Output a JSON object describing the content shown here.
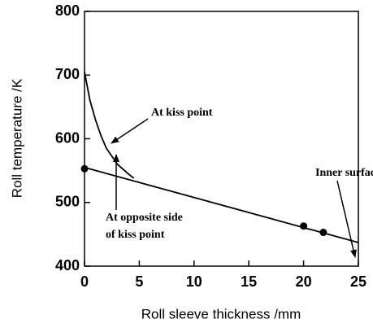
{
  "chart_data": {
    "type": "line",
    "xlabel": "Roll sleeve thickness /mm",
    "ylabel": "Roll temperature /K",
    "xlim": [
      0,
      25
    ],
    "xticks": [
      0,
      5,
      10,
      15,
      20,
      25
    ],
    "ylim": [
      400,
      800
    ],
    "yticks": [
      400,
      500,
      600,
      700,
      800
    ],
    "series": [
      {
        "type": "line",
        "color": "#000000",
        "x": [
          0,
          0.5,
          1,
          1.5,
          2,
          3,
          4,
          4.5
        ],
        "values": [
          705,
          660,
          630,
          605,
          585,
          560,
          545,
          538
        ]
      },
      {
        "type": "line",
        "color": "#000000",
        "x": [
          0,
          25
        ],
        "values": [
          555,
          437
        ]
      },
      {
        "type": "scatter",
        "color": "#000000",
        "x": [
          0,
          20,
          21.8
        ],
        "values": [
          553,
          463,
          453
        ]
      }
    ],
    "annotations": [
      "At kiss point",
      "At opposite side",
      "of kiss point",
      "Inner surface"
    ]
  }
}
